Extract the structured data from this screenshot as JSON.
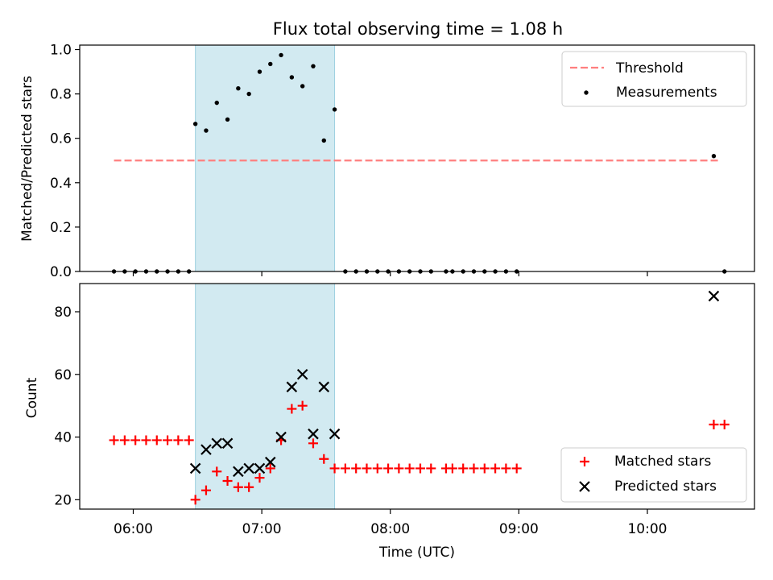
{
  "chart_data": [
    {
      "type": "scatter",
      "title": "Flux total observing time = 1.08 h",
      "xlabel": "",
      "ylabel": "Matched/Predicted stars",
      "xlim": [
        "05:35",
        "10:50"
      ],
      "ylim": [
        0,
        1.02
      ],
      "yticks": [
        0.0,
        0.2,
        0.4,
        0.6,
        0.8,
        1.0
      ],
      "ytick_labels": [
        "0.0",
        "0.2",
        "0.4",
        "0.6",
        "0.8",
        "1.0"
      ],
      "shaded_span": [
        "06:29",
        "07:34"
      ],
      "legend_position": "top-right",
      "threshold": {
        "name": "Threshold",
        "value": 0.5,
        "x_range": [
          "05:51",
          "10:34"
        ],
        "color": "#ff7f7f",
        "style": "dashed"
      },
      "series": [
        {
          "name": "Measurements",
          "marker": "dot",
          "color": "#000000",
          "points": [
            [
              "05:51",
              0
            ],
            [
              "05:56",
              0
            ],
            [
              "06:01",
              0
            ],
            [
              "06:06",
              0
            ],
            [
              "06:11",
              0
            ],
            [
              "06:16",
              0
            ],
            [
              "06:21",
              0
            ],
            [
              "06:26",
              0
            ],
            [
              "06:29",
              0.665
            ],
            [
              "06:34",
              0.635
            ],
            [
              "06:39",
              0.76
            ],
            [
              "06:44",
              0.685
            ],
            [
              "06:49",
              0.825
            ],
            [
              "06:54",
              0.8
            ],
            [
              "06:59",
              0.9
            ],
            [
              "07:04",
              0.935
            ],
            [
              "07:09",
              0.975
            ],
            [
              "07:14",
              0.875
            ],
            [
              "07:19",
              0.835
            ],
            [
              "07:24",
              0.925
            ],
            [
              "07:29",
              0.59
            ],
            [
              "07:34",
              0.73
            ],
            [
              "07:39",
              0
            ],
            [
              "07:44",
              0
            ],
            [
              "07:49",
              0
            ],
            [
              "07:54",
              0
            ],
            [
              "07:59",
              0
            ],
            [
              "08:04",
              0
            ],
            [
              "08:09",
              0
            ],
            [
              "08:14",
              0
            ],
            [
              "08:19",
              0
            ],
            [
              "08:26",
              0
            ],
            [
              "08:29",
              0
            ],
            [
              "08:34",
              0
            ],
            [
              "08:39",
              0
            ],
            [
              "08:44",
              0
            ],
            [
              "08:49",
              0
            ],
            [
              "08:54",
              0
            ],
            [
              "08:59",
              0
            ],
            [
              "10:31",
              0.52
            ],
            [
              "10:36",
              0
            ]
          ]
        }
      ]
    },
    {
      "type": "scatter",
      "title": "",
      "xlabel": "Time (UTC)",
      "ylabel": "Count",
      "xlim": [
        "05:35",
        "10:50"
      ],
      "ylim": [
        17,
        89
      ],
      "yticks": [
        20,
        40,
        60,
        80
      ],
      "ytick_labels": [
        "20",
        "40",
        "60",
        "80"
      ],
      "xticks": [
        "06:00",
        "07:00",
        "08:00",
        "09:00",
        "10:00"
      ],
      "xtick_labels": [
        "06:00",
        "07:00",
        "08:00",
        "09:00",
        "10:00"
      ],
      "shaded_span": [
        "06:29",
        "07:34"
      ],
      "legend_position": "bottom-right",
      "series": [
        {
          "name": "Matched stars",
          "marker": "plus",
          "color": "#ff0000",
          "points": [
            [
              "05:51",
              39
            ],
            [
              "05:56",
              39
            ],
            [
              "06:01",
              39
            ],
            [
              "06:06",
              39
            ],
            [
              "06:11",
              39
            ],
            [
              "06:16",
              39
            ],
            [
              "06:21",
              39
            ],
            [
              "06:26",
              39
            ],
            [
              "06:29",
              20
            ],
            [
              "06:34",
              23
            ],
            [
              "06:39",
              29
            ],
            [
              "06:44",
              26
            ],
            [
              "06:49",
              24
            ],
            [
              "06:54",
              24
            ],
            [
              "06:59",
              27
            ],
            [
              "07:04",
              30
            ],
            [
              "07:09",
              39
            ],
            [
              "07:14",
              49
            ],
            [
              "07:19",
              50
            ],
            [
              "07:24",
              38
            ],
            [
              "07:29",
              33
            ],
            [
              "07:34",
              30
            ],
            [
              "07:39",
              30
            ],
            [
              "07:44",
              30
            ],
            [
              "07:49",
              30
            ],
            [
              "07:54",
              30
            ],
            [
              "07:59",
              30
            ],
            [
              "08:04",
              30
            ],
            [
              "08:09",
              30
            ],
            [
              "08:14",
              30
            ],
            [
              "08:19",
              30
            ],
            [
              "08:26",
              30
            ],
            [
              "08:29",
              30
            ],
            [
              "08:34",
              30
            ],
            [
              "08:39",
              30
            ],
            [
              "08:44",
              30
            ],
            [
              "08:49",
              30
            ],
            [
              "08:54",
              30
            ],
            [
              "08:59",
              30
            ],
            [
              "10:31",
              44
            ],
            [
              "10:36",
              44
            ]
          ]
        },
        {
          "name": "Predicted stars",
          "marker": "x",
          "color": "#000000",
          "points": [
            [
              "06:29",
              30
            ],
            [
              "06:34",
              36
            ],
            [
              "06:39",
              38
            ],
            [
              "06:44",
              38
            ],
            [
              "06:49",
              29
            ],
            [
              "06:54",
              30
            ],
            [
              "06:59",
              30
            ],
            [
              "07:04",
              32
            ],
            [
              "07:09",
              40
            ],
            [
              "07:14",
              56
            ],
            [
              "07:19",
              60
            ],
            [
              "07:24",
              41
            ],
            [
              "07:29",
              56
            ],
            [
              "07:34",
              41
            ],
            [
              "10:31",
              85
            ]
          ]
        }
      ]
    }
  ]
}
